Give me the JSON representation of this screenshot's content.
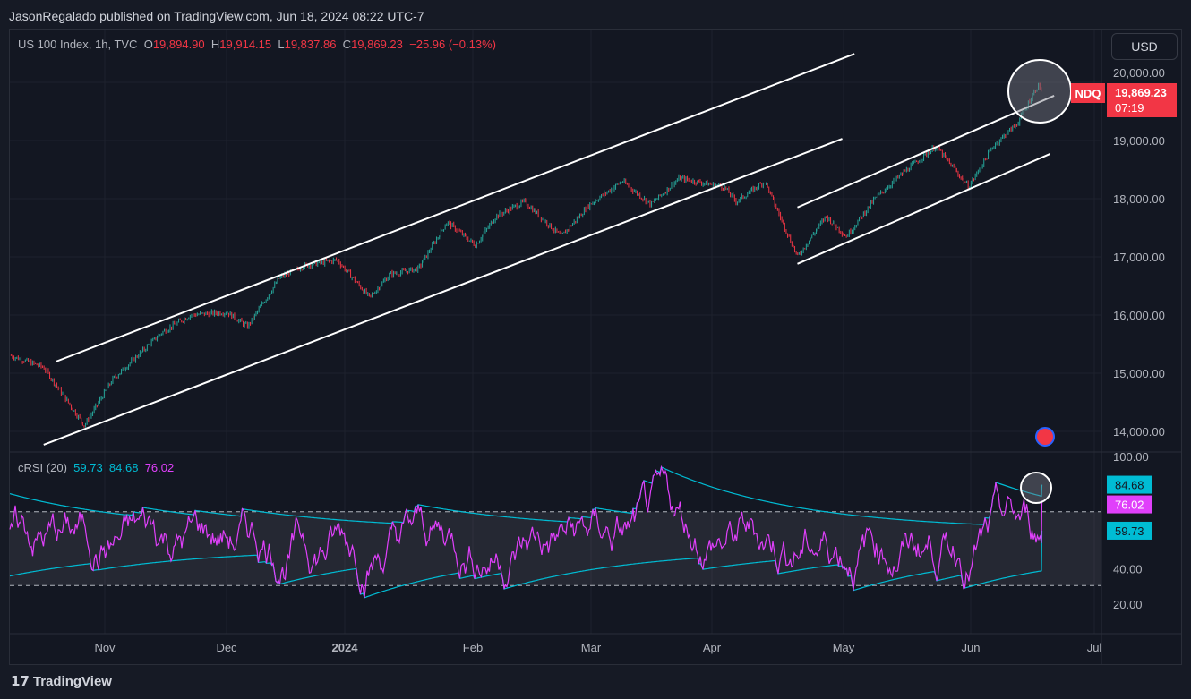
{
  "header": {
    "published": "JasonRegalado published on TradingView.com, Jun 18, 2024 08:22 UTC-7"
  },
  "legend": {
    "symbol": "US 100 Index, 1h, TVC",
    "o_label": "O",
    "o": "19,894.90",
    "h_label": "H",
    "h": "19,914.15",
    "l_label": "L",
    "l": "19,837.86",
    "c_label": "C",
    "c": "19,869.23",
    "change": "−25.96 (−0.13%)"
  },
  "currency_button": "USD",
  "price_badge": {
    "ticker": "NDQ",
    "price": "19,869.23",
    "countdown": "07:19",
    "color": "#f23645"
  },
  "rsi_legend": {
    "name": "cRSI (20)",
    "v1": "59.73",
    "v2": "84.68",
    "v3": "76.02"
  },
  "rsi_badges": [
    {
      "value": "84.68",
      "color": "#00bcd4"
    },
    {
      "value": "76.02",
      "color": "#e040fb"
    },
    {
      "value": "59.73",
      "color": "#00bcd4"
    }
  ],
  "price_axis": [
    "20,000.00",
    "19,000.00",
    "18,000.00",
    "17,000.00",
    "16,000.00",
    "15,000.00",
    "14,000.00"
  ],
  "rsi_axis": [
    "100.00",
    "40.00",
    "20.00"
  ],
  "time_axis": [
    "Nov",
    "Dec",
    "2024",
    "Feb",
    "Mar",
    "Apr",
    "May",
    "Jun",
    "Jul"
  ],
  "footer": {
    "brand": "TradingView"
  },
  "chart_data": {
    "type": "candlestick",
    "price_ylim": [
      13700,
      20300
    ],
    "last_price": 19869.23,
    "up_color": "#26a69a",
    "down_color": "#f23645",
    "price_path": [
      [
        "2023-10-09",
        15300
      ],
      [
        "2023-10-17",
        15100
      ],
      [
        "2023-10-27",
        14100
      ],
      [
        "2023-11-03",
        14900
      ],
      [
        "2023-11-15",
        15700
      ],
      [
        "2023-11-22",
        16000
      ],
      [
        "2023-12-01",
        16050
      ],
      [
        "2023-12-06",
        15800
      ],
      [
        "2023-12-14",
        16650
      ],
      [
        "2023-12-20",
        16850
      ],
      [
        "2023-12-28",
        16950
      ],
      [
        "2024-01-05",
        16300
      ],
      [
        "2024-01-10",
        16700
      ],
      [
        "2024-01-17",
        16800
      ],
      [
        "2024-01-24",
        17600
      ],
      [
        "2024-01-31",
        17200
      ],
      [
        "2024-02-05",
        17700
      ],
      [
        "2024-02-12",
        17950
      ],
      [
        "2024-02-21",
        17350
      ],
      [
        "2024-02-28",
        17900
      ],
      [
        "2024-03-07",
        18300
      ],
      [
        "2024-03-14",
        17900
      ],
      [
        "2024-03-21",
        18350
      ],
      [
        "2024-04-01",
        18200
      ],
      [
        "2024-04-04",
        17950
      ],
      [
        "2024-04-11",
        18300
      ],
      [
        "2024-04-19",
        17000
      ],
      [
        "2024-04-26",
        17700
      ],
      [
        "2024-05-01",
        17350
      ],
      [
        "2024-05-08",
        18000
      ],
      [
        "2024-05-15",
        18450
      ],
      [
        "2024-05-23",
        18900
      ],
      [
        "2024-05-31",
        18200
      ],
      [
        "2024-06-06",
        18900
      ],
      [
        "2024-06-12",
        19300
      ],
      [
        "2024-06-17",
        19950
      ],
      [
        "2024-06-18",
        19869
      ]
    ],
    "trendlines": [
      {
        "from": [
          "2023-10-17",
          13770
        ],
        "to": [
          "2024-04-30",
          19030
        ]
      },
      {
        "from": [
          "2023-10-20",
          15200
        ],
        "to": [
          "2024-05-03",
          20490
        ]
      },
      {
        "from": [
          "2024-04-19",
          17850
        ],
        "to": [
          "2024-06-21",
          19770
        ]
      },
      {
        "from": [
          "2024-04-19",
          16880
        ],
        "to": [
          "2024-06-20",
          18770
        ]
      }
    ],
    "rsi": {
      "period": 20,
      "ylim": [
        10,
        100
      ],
      "upper_band": 70,
      "lower_band": 30,
      "last": {
        "crsi": 76.02,
        "upper": 84.68,
        "lower": 59.73
      },
      "line_color": "#e040fb",
      "band_color": "#00bcd4"
    }
  }
}
